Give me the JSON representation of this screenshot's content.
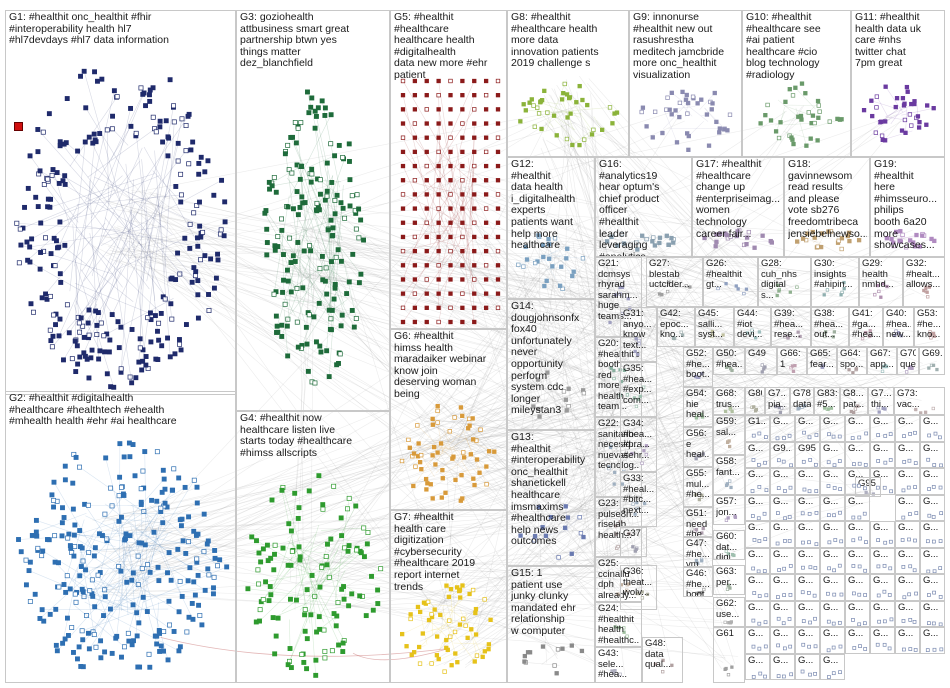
{
  "groups": [
    {
      "id": "G1",
      "text": "G1: #healthit onc_healthit #fhir #interoperability health hl7 #hl7devdays #hl7 data information",
      "color": "#1f2a6b"
    },
    {
      "id": "G2",
      "text": "G2: #healthit #digitalhealth #healthcare #healthtech #ehealth #mhealth health #ehr #ai healthcare",
      "color": "#2e6fb2"
    },
    {
      "id": "G3",
      "text": "G3: goziohealth attbusiness smart great partnership btwn yes things matter dez_blanchfield",
      "color": "#1e6b3a"
    },
    {
      "id": "G4",
      "text": "G4: #healthit now healthcare listen live starts today #healthcare #himss allscripts",
      "color": "#2e9b2e"
    },
    {
      "id": "G5",
      "text": "G5: #healthit #healthcare healthcare health #digitalhealth data new more #ehr patient",
      "color": "#8b1a1a"
    },
    {
      "id": "G6",
      "text": "G6: #healthit himss health maradaiker webinar know join deserving woman being",
      "color": "#d89a3a"
    },
    {
      "id": "G7",
      "text": "G7: #healthit health care digitization #cybersecurity #healthcare 2019 report internet trends",
      "color": "#e6c21a"
    },
    {
      "id": "G8",
      "text": "G8: #healthit #healthcare health more data innovation patients 2019 challenge s",
      "color": "#8bb33a"
    },
    {
      "id": "G9",
      "text": "G9: innonurse #healthit new out rasushrestha meditech jamcbride more onc_healthit visualization",
      "color": "#8a8ab0"
    },
    {
      "id": "G10",
      "text": "G10: #healthit #healthcare see #ai patient healthcare #cio blog technology #radiology",
      "color": "#6a9a6a"
    },
    {
      "id": "G11",
      "text": "G11: #healthit health data uk care #nhs twitter chat 7pm great",
      "color": "#6a3aa0"
    },
    {
      "id": "G12",
      "text": "G12: #healthit data health i_digitalhealth experts patients want help more healthcare",
      "color": "#7aa0c0"
    },
    {
      "id": "G13",
      "text": "G13: #healthit #interoperability onc_healthit shanetickell healthcare imsmaxims #healthcare help news outcomes",
      "color": "#6a7ab0"
    },
    {
      "id": "G14",
      "text": "G14: dougjohnsonfx fox40 unfortunately never opportunity perform system cdc longer mileystan3",
      "color": "#9a9a9a"
    },
    {
      "id": "G15",
      "text": "G15: 1 patient use junky clunky mandated ehr relationship w computer",
      "color": "#8a8a8a"
    },
    {
      "id": "G16",
      "text": "G16: #analytics19 hear optum's chief product officer #healthit leader leveraging #analytics",
      "color": "#8aa0b0"
    },
    {
      "id": "G17",
      "text": "G17: #healthit #healthcare change up #enterpriseimag... women technology career fair...",
      "color": "#a08ab0"
    },
    {
      "id": "G18",
      "text": "G18: gavinnewsom read results and please vote sb276 freedomtribeca jensiebelnewso...",
      "color": "#c0a070"
    },
    {
      "id": "G19",
      "text": "G19: #healthit here #himsseuro... philips booth 6a20 more showcases...",
      "color": "#b08ac0"
    },
    {
      "id": "G20",
      "text": "G20: #healthit's booth red more health team...",
      "color": "#8ab0a0"
    },
    {
      "id": "G21",
      "text": "G21: dcmsys rhyrad sarahm... huge teams...",
      "color": "#a0a0c0"
    },
    {
      "id": "G22",
      "text": "G22: sanitario necesid... nuevas tecnolog...",
      "color": "#a0b0c0"
    },
    {
      "id": "G23",
      "text": "G23: pulse8n... riselab... health...",
      "color": "#b0a0a0"
    },
    {
      "id": "G24",
      "text": "G24: #healthit health #healthc...",
      "color": "#a0c0a0"
    },
    {
      "id": "G25",
      "text": "G25: ccinallu dph already...",
      "color": "#c0b0a0"
    },
    {
      "id": "G26",
      "text": "G26: #healthit gt...",
      "color": "#90a0c0"
    },
    {
      "id": "G27",
      "text": "G27: blestab uctcider...",
      "color": "#a0a0a0"
    },
    {
      "id": "G28",
      "text": "G28: cuh_nhs digital s...",
      "color": "#90b090"
    },
    {
      "id": "G29",
      "text": "G29: health nmhd...",
      "color": "#b090b0"
    },
    {
      "id": "G30",
      "text": "G30: insights #ahipin...",
      "color": "#90b0b0"
    },
    {
      "id": "G31",
      "text": "G31: anyo... know text...",
      "color": "#a0a0c0"
    },
    {
      "id": "G32",
      "text": "G32: #healt... allows...",
      "color": "#c0a0a0"
    },
    {
      "id": "G33",
      "text": "G33: #heal... #bitc... next...",
      "color": "#a0b0c0"
    },
    {
      "id": "G34",
      "text": "G34: #hea... #pra... #ehr...",
      "color": "#b0a0c0"
    },
    {
      "id": "G35",
      "text": "G35: #hea... #exp... com...",
      "color": "#a0c0b0"
    },
    {
      "id": "G36",
      "text": "G36: theat... wolv...",
      "color": "#b0b0a0"
    },
    {
      "id": "G37",
      "text": "G37",
      "color": "#a0a0b0"
    },
    {
      "id": "G38",
      "text": "G38: #hea... out...",
      "color": "#a0b0a0"
    },
    {
      "id": "G39",
      "text": "G39: #hea... rese...",
      "color": "#b0a0b0"
    },
    {
      "id": "G40",
      "text": "G40: #hea... new...",
      "color": "#a0a0c0"
    },
    {
      "id": "G41",
      "text": "G41: #ga... #hea...",
      "color": "#c0a0b0"
    },
    {
      "id": "G42",
      "text": "G42: epoc... kno...",
      "color": "#a0b0b0"
    },
    {
      "id": "G43",
      "text": "G43: sele... #hea...",
      "color": "#b0b0c0"
    },
    {
      "id": "G44",
      "text": "G44: #iot devi...",
      "color": "#a0c0c0"
    },
    {
      "id": "G45",
      "text": "G45: salli... syst...",
      "color": "#c0c0a0"
    },
    {
      "id": "G46",
      "text": "G46: #he... boot...",
      "color": "#a0a0a0"
    },
    {
      "id": "G47",
      "text": "G47: #he... vm...",
      "color": "#a0b0c0"
    },
    {
      "id": "G48",
      "text": "G48: data qual...",
      "color": "#b0a0a0"
    },
    {
      "id": "G49",
      "text": "G49",
      "color": "#a0a0b0"
    },
    {
      "id": "G50",
      "text": "G50: #hea...",
      "color": "#a0b0a0"
    },
    {
      "id": "G51",
      "text": "G51: need #he...",
      "color": "#b0a0b0"
    },
    {
      "id": "G52",
      "text": "G52: #he... boot...",
      "color": "#a0a0c0"
    },
    {
      "id": "G53",
      "text": "G53: #he... kno...",
      "color": "#c0a0a0"
    },
    {
      "id": "G54",
      "text": "G54: hie heal...",
      "color": "#a0c0a0"
    },
    {
      "id": "G55",
      "text": "G55: mul... #he...",
      "color": "#b0b0a0"
    },
    {
      "id": "G56",
      "text": "G56: e heal...",
      "color": "#a0a0b0"
    },
    {
      "id": "G57",
      "text": "G57: jon... ...",
      "color": "#b0a0c0"
    },
    {
      "id": "G58",
      "text": "G58: fant...",
      "color": "#a0b0c0"
    },
    {
      "id": "G59",
      "text": "G59: sal...",
      "color": "#c0b0a0"
    },
    {
      "id": "G60",
      "text": "G60: dat... digi...",
      "color": "#a0c0b0"
    },
    {
      "id": "G61",
      "text": "G61",
      "color": "#a0a0a0"
    },
    {
      "id": "G62",
      "text": "G62: use... ...",
      "color": "#b0b0b0"
    },
    {
      "id": "G63",
      "text": "G63: per...",
      "color": "#a0b0a0"
    },
    {
      "id": "G64",
      "text": "G64: spo...",
      "color": "#b0a0a0"
    },
    {
      "id": "G65",
      "text": "G65: fear...",
      "color": "#a0a0c0"
    },
    {
      "id": "G66",
      "text": "G66: 1",
      "color": "#c0a0b0"
    },
    {
      "id": "G67",
      "text": "G67: app...",
      "color": "#a0c0c0"
    },
    {
      "id": "G68",
      "text": "G68: trus...",
      "color": "#b0c0a0"
    },
    {
      "id": "G69",
      "text": "G69...",
      "color": "#a0b0b0"
    },
    {
      "id": "G70",
      "text": "G70: que...",
      "color": "#b0a0c0"
    },
    {
      "id": "G7x",
      "text": "G7... pia...",
      "color": "#a0a0b0"
    },
    {
      "id": "G73",
      "text": "G73: vac...",
      "color": "#c0b0b0"
    },
    {
      "id": "G78",
      "text": "G78: data",
      "color": "#a0b0c0"
    },
    {
      "id": "G80",
      "text": "G80",
      "color": "#b0b0a0"
    },
    {
      "id": "G83",
      "text": "G83: #5...",
      "color": "#a0c0a0"
    },
    {
      "id": "G8x",
      "text": "G8... pat...",
      "color": "#b0a0a0"
    },
    {
      "id": "G7y",
      "text": "G7... thi...",
      "color": "#a0a0c0"
    },
    {
      "id": "G95",
      "text": "G95",
      "color": "#b0b0c0"
    }
  ],
  "small_cells": [
    "G1...",
    "G...",
    "G...",
    "G...",
    "G...",
    "G...",
    "G...",
    "G...",
    "G...",
    "G9...",
    "G95",
    "G...",
    "G...",
    "G...",
    "G...",
    "G...",
    "G...",
    "G...",
    "G...",
    "G...",
    "G...",
    "G...",
    "G...",
    "G...",
    "G...",
    "G...",
    "G...",
    "G...",
    "G...",
    "G...",
    "G...",
    "G...",
    "G...",
    "G...",
    "G...",
    "G...",
    "G...",
    "G...",
    "G...",
    "G...",
    "G...",
    "G...",
    "G...",
    "G...",
    "G...",
    "G...",
    "G...",
    "G...",
    "G...",
    "G...",
    "G...",
    "G...",
    "G...",
    "G...",
    "G...",
    "G...",
    "G...",
    "G...",
    "G...",
    "G...",
    "G...",
    "G...",
    "G...",
    "G...",
    "G...",
    "G...",
    "G...",
    "G...",
    "G...",
    "G...",
    "G...",
    "G...",
    "G...",
    "G...",
    "G..."
  ]
}
